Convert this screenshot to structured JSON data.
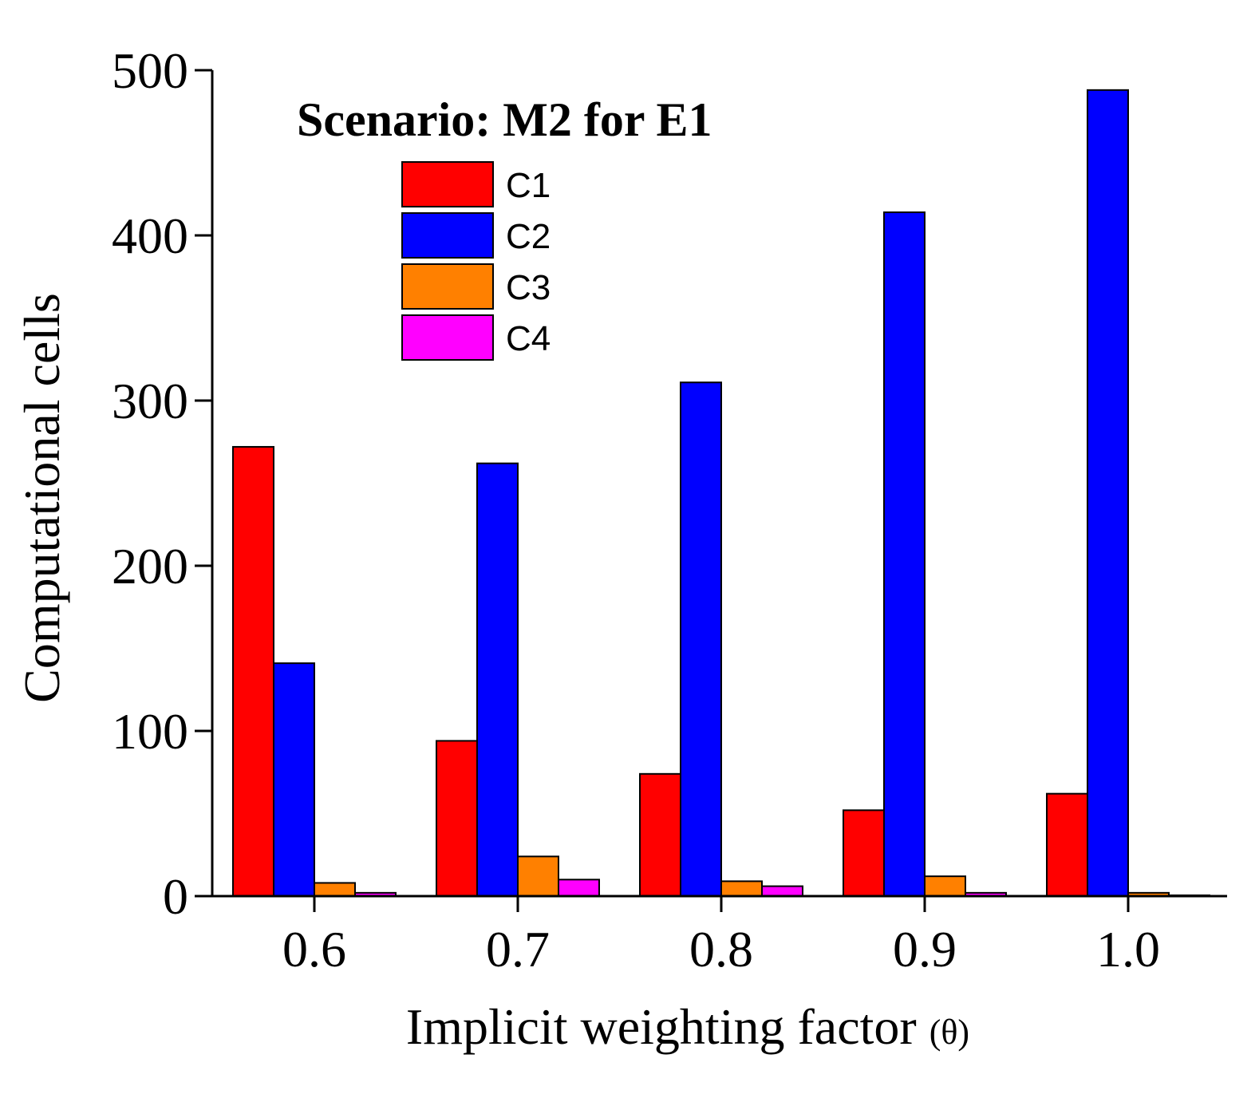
{
  "chart_data": {
    "type": "bar",
    "title": "Scenario: M2 for E1",
    "xlabel": "Implicit weighting factor",
    "xlabel_symbol": "(θ)",
    "ylabel": "Computational cells",
    "categories": [
      "0.6",
      "0.7",
      "0.8",
      "0.9",
      "1.0"
    ],
    "ylim": [
      0,
      500
    ],
    "yticks": [
      0,
      100,
      200,
      300,
      400,
      500
    ],
    "grid": false,
    "legend_position": "top-left",
    "series": [
      {
        "name": "C1",
        "color": "#ff0000",
        "values": [
          272,
          94,
          74,
          52,
          62
        ]
      },
      {
        "name": "C2",
        "color": "#0000ff",
        "values": [
          141,
          262,
          311,
          414,
          488
        ]
      },
      {
        "name": "C3",
        "color": "#ff8000",
        "values": [
          8,
          24,
          9,
          12,
          2
        ]
      },
      {
        "name": "C4",
        "color": "#ff00ff",
        "values": [
          2,
          10,
          6,
          2,
          0.5
        ]
      }
    ]
  }
}
